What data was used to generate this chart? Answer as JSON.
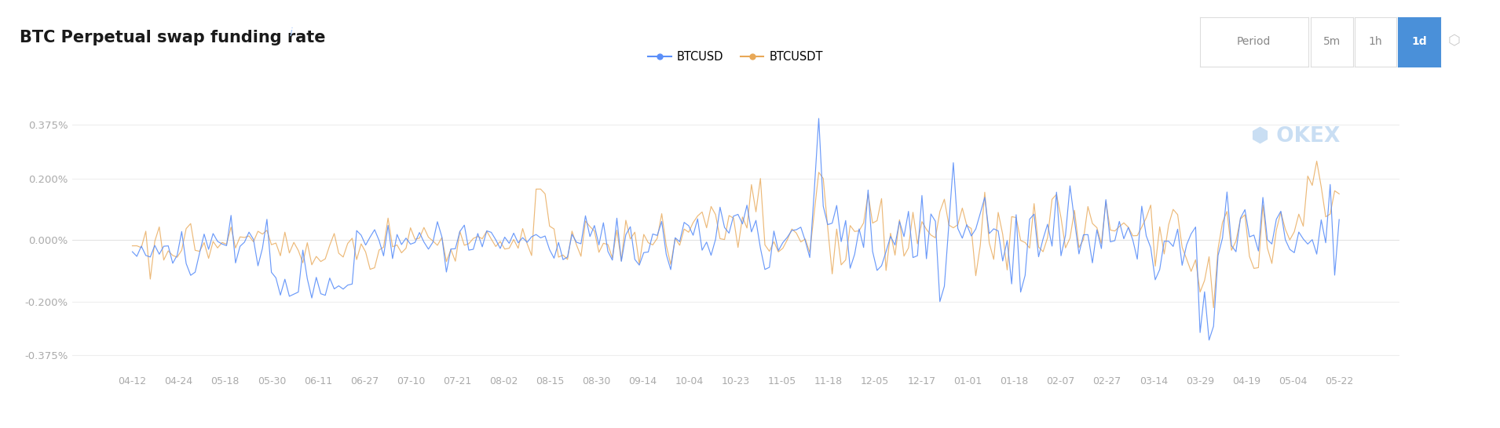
{
  "title": "BTC Perpetual swap funding rate",
  "title_fontsize": 15,
  "background_color": "#ffffff",
  "line_color_btcusd": "#5b8ff9",
  "line_color_btcusdt": "#e8a857",
  "ylabel_color": "#aaaaaa",
  "xlabel_color": "#aaaaaa",
  "ytick_labels": [
    "0.375%",
    "0.200%",
    "0.000%",
    "-0.200%",
    "-0.375%"
  ],
  "ytick_values": [
    0.00375,
    0.002,
    0.0,
    -0.002,
    -0.00375
  ],
  "ylim": [
    -0.0043,
    0.0046
  ],
  "xtick_labels": [
    "04-12",
    "04-24",
    "05-18",
    "05-30",
    "06-11",
    "06-27",
    "07-10",
    "07-21",
    "08-02",
    "08-15",
    "08-30",
    "09-14",
    "10-04",
    "10-23",
    "11-05",
    "11-18",
    "12-05",
    "12-17",
    "01-01",
    "01-18",
    "02-07",
    "02-27",
    "03-14",
    "03-29",
    "04-19",
    "05-04",
    "05-22"
  ],
  "legend_labels": [
    "BTCUSD",
    "BTCUSDT"
  ],
  "okex_text": " OKEX",
  "grid_color": "#eeeeee",
  "period_label": "Period",
  "button_labels": [
    "5m",
    "1h",
    "1d"
  ],
  "active_button": "1d",
  "seed": 42
}
